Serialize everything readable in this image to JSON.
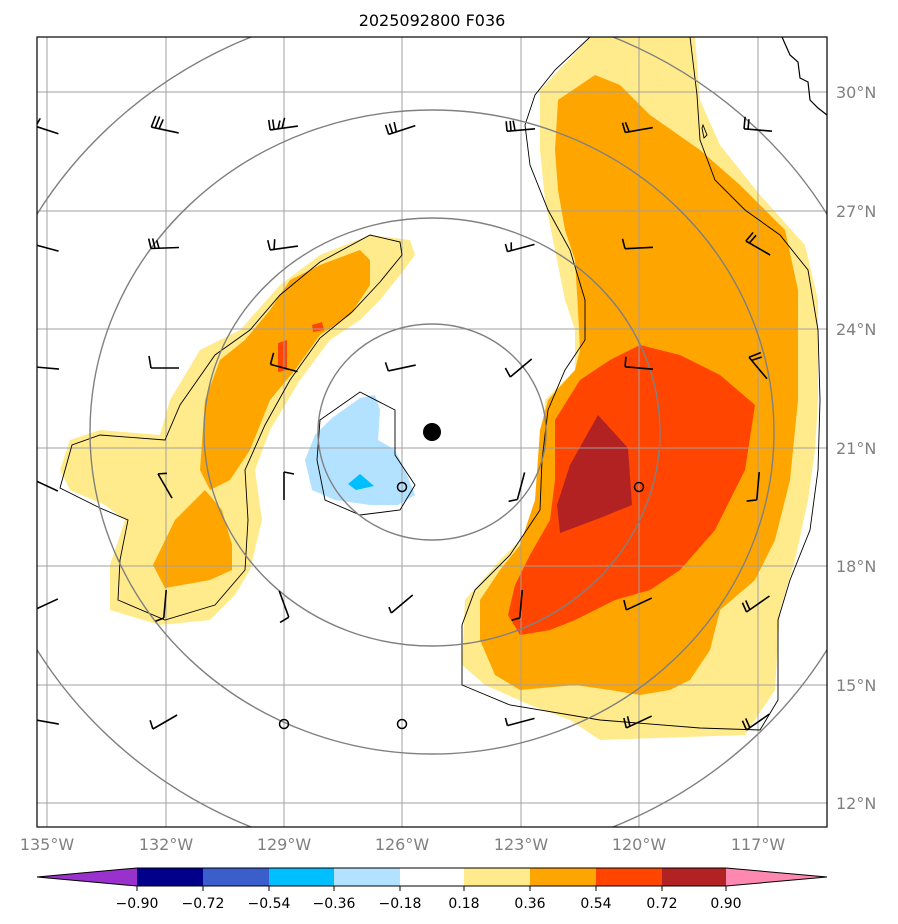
{
  "title": "2025092800 F036",
  "colors": {
    "bins": [
      "#9932cc",
      "#00008b",
      "#3a5fcd",
      "#00bfff",
      "#b2e2ff",
      "#ffffff",
      "#ffeb8c",
      "#ffa500",
      "#ff4500",
      "#b22222",
      "#ff88b0"
    ],
    "grid": "#a0a0a0",
    "ring": "#808080",
    "outline": "#000000"
  },
  "map": {
    "lon_labels": [
      "135°W",
      "132°W",
      "129°W",
      "126°W",
      "123°W",
      "120°W",
      "117°W"
    ],
    "lat_labels": [
      "30°N",
      "27°N",
      "24°N",
      "21°N",
      "18°N",
      "15°N",
      "12°N"
    ],
    "center_marker_icon": "filled-circle-icon"
  },
  "colorbar": {
    "tick_labels": [
      "−0.90",
      "−0.72",
      "−0.54",
      "−0.36",
      "−0.18",
      "0.18",
      "0.36",
      "0.54",
      "0.72",
      "0.90"
    ],
    "extend": "both"
  }
}
